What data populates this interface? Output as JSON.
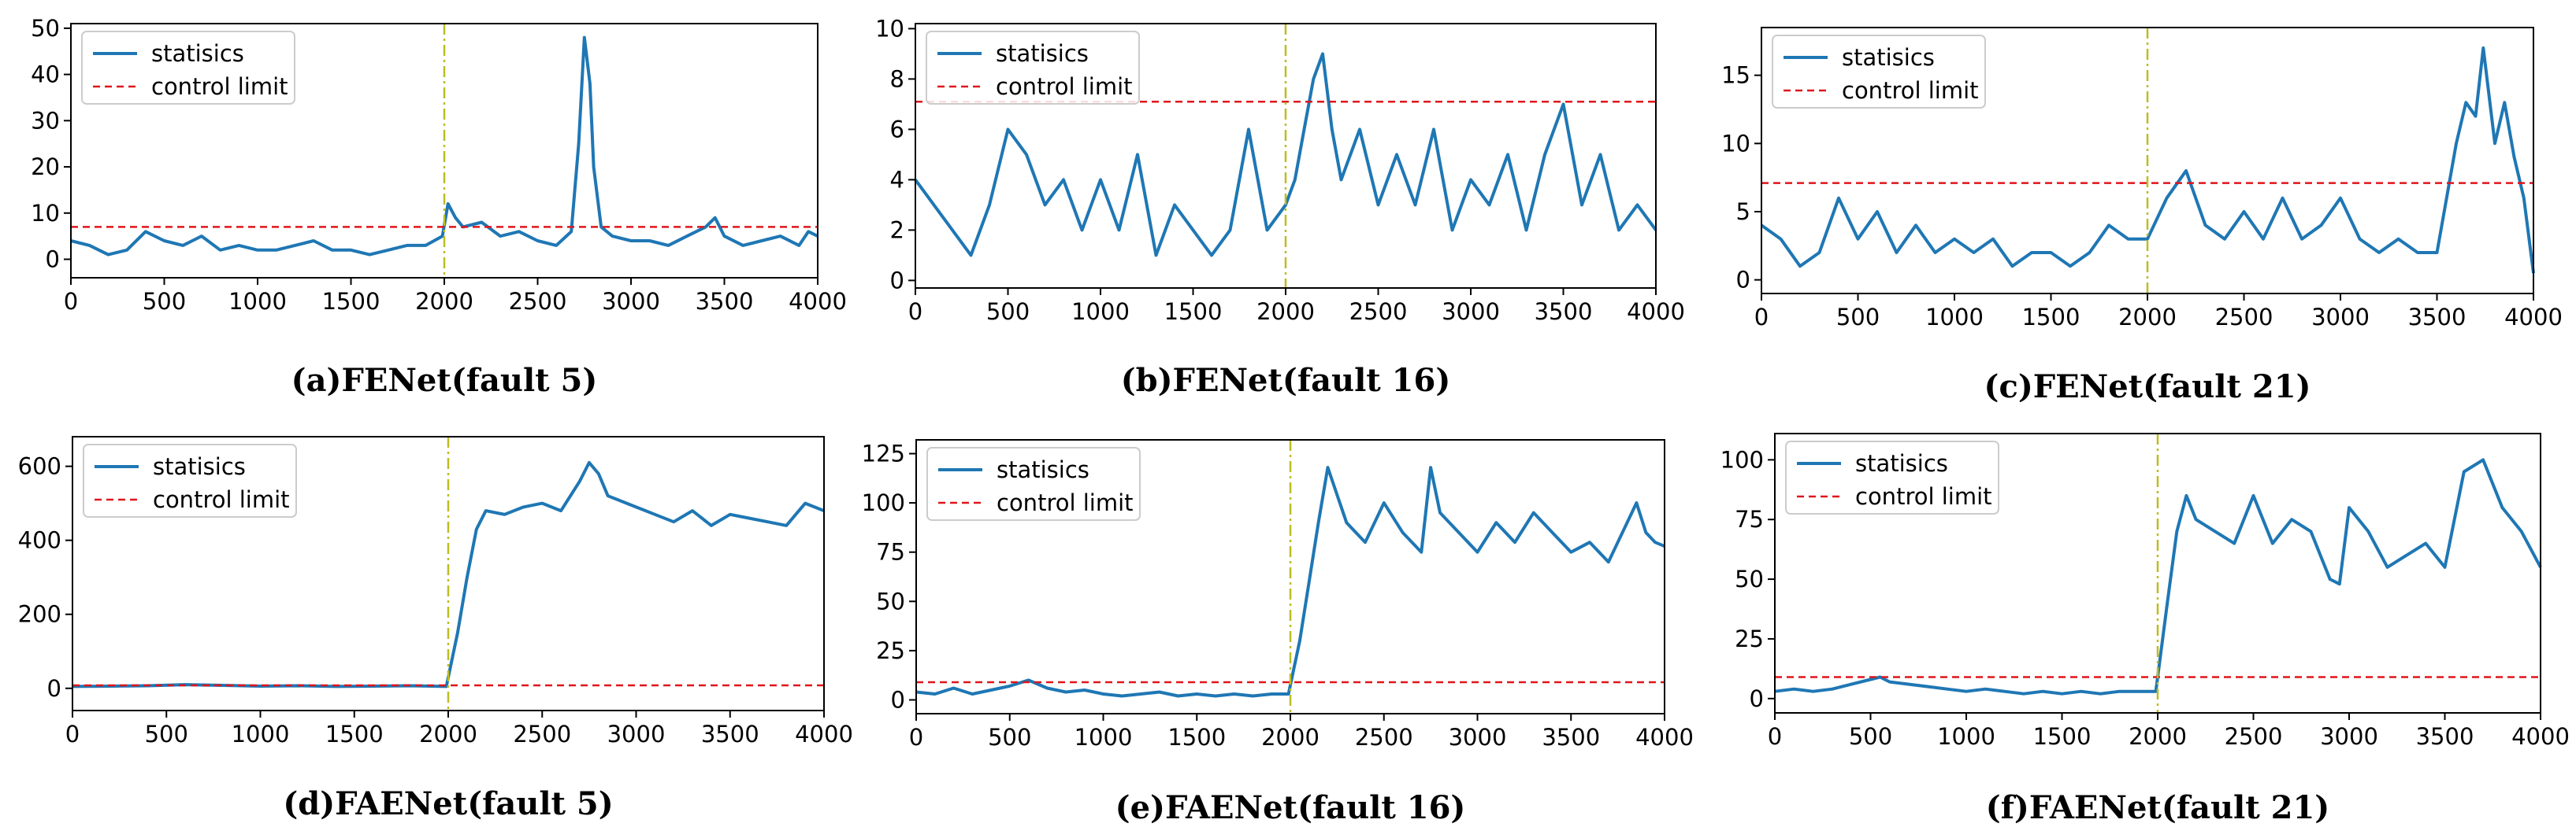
{
  "colors": {
    "statistic": "#1f77b4",
    "control_limit": "#e0151b",
    "fault_onset": "#bcbd22",
    "axes": "#000000",
    "legend_border": "#cccccc"
  },
  "chart_data": [
    {
      "type": "line",
      "caption": "(a)FENet(fault 5)",
      "x_ticks": [
        0,
        500,
        1000,
        1500,
        2000,
        2500,
        3000,
        3500,
        4000
      ],
      "y_ticks": [
        0,
        10,
        20,
        30,
        40,
        50
      ],
      "xlim": [
        0,
        4000
      ],
      "ylim": [
        -4,
        51
      ],
      "legend_position": "top-left",
      "series": [
        {
          "name": "statisics",
          "style": "solid",
          "x": [
            0,
            100,
            200,
            300,
            400,
            500,
            600,
            700,
            800,
            900,
            1000,
            1100,
            1200,
            1300,
            1400,
            1500,
            1600,
            1700,
            1800,
            1900,
            1990,
            2020,
            2060,
            2100,
            2200,
            2300,
            2400,
            2500,
            2600,
            2680,
            2720,
            2750,
            2780,
            2800,
            2840,
            2900,
            3000,
            3100,
            3200,
            3300,
            3400,
            3450,
            3500,
            3600,
            3700,
            3800,
            3900,
            3950,
            4000
          ],
          "y": [
            4,
            3,
            1,
            2,
            6,
            4,
            3,
            5,
            2,
            3,
            2,
            2,
            3,
            4,
            2,
            2,
            1,
            2,
            3,
            3,
            5,
            12,
            9,
            7,
            8,
            5,
            6,
            4,
            3,
            6,
            25,
            48,
            38,
            20,
            7,
            5,
            4,
            4,
            3,
            5,
            7,
            9,
            5,
            3,
            4,
            5,
            3,
            6,
            5
          ]
        },
        {
          "name": "control limit",
          "style": "dashed",
          "x": [
            0,
            4000
          ],
          "y": [
            7,
            7
          ]
        }
      ],
      "fault_onset_x": 2000
    },
    {
      "type": "line",
      "caption": "(b)FENet(fault 16)",
      "x_ticks": [
        0,
        500,
        1000,
        1500,
        2000,
        2500,
        3000,
        3500,
        4000
      ],
      "y_ticks": [
        0,
        2,
        4,
        6,
        8,
        10
      ],
      "xlim": [
        0,
        4000
      ],
      "ylim": [
        -0.3,
        10.2
      ],
      "legend_position": "top-left",
      "series": [
        {
          "name": "statisics",
          "style": "solid",
          "x": [
            0,
            100,
            200,
            300,
            400,
            500,
            600,
            700,
            800,
            900,
            1000,
            1100,
            1200,
            1300,
            1400,
            1500,
            1600,
            1700,
            1800,
            1900,
            2000,
            2050,
            2100,
            2150,
            2200,
            2250,
            2300,
            2400,
            2500,
            2600,
            2700,
            2800,
            2900,
            3000,
            3100,
            3200,
            3300,
            3400,
            3500,
            3600,
            3700,
            3800,
            3900,
            4000
          ],
          "y": [
            4,
            3,
            2,
            1,
            3,
            6,
            5,
            3,
            4,
            2,
            4,
            2,
            5,
            1,
            3,
            2,
            1,
            2,
            6,
            2,
            3,
            4,
            6,
            8,
            9,
            6,
            4,
            6,
            3,
            5,
            3,
            6,
            2,
            4,
            3,
            5,
            2,
            5,
            7,
            3,
            5,
            2,
            3,
            2
          ]
        },
        {
          "name": "control limit",
          "style": "dashed",
          "x": [
            0,
            4000
          ],
          "y": [
            7.1,
            7.1
          ]
        }
      ],
      "fault_onset_x": 2000
    },
    {
      "type": "line",
      "caption": "(c)FENet(fault 21)",
      "x_ticks": [
        0,
        500,
        1000,
        1500,
        2000,
        2500,
        3000,
        3500,
        4000
      ],
      "y_ticks": [
        0,
        5,
        10,
        15
      ],
      "xlim": [
        0,
        4000
      ],
      "ylim": [
        -1,
        18.5
      ],
      "legend_position": "top-left",
      "series": [
        {
          "name": "statisics",
          "style": "solid",
          "x": [
            0,
            100,
            200,
            300,
            400,
            500,
            600,
            700,
            800,
            900,
            1000,
            1100,
            1200,
            1300,
            1400,
            1500,
            1600,
            1700,
            1800,
            1900,
            2000,
            2100,
            2200,
            2300,
            2400,
            2500,
            2600,
            2700,
            2800,
            2900,
            3000,
            3100,
            3200,
            3300,
            3400,
            3500,
            3600,
            3650,
            3700,
            3740,
            3800,
            3850,
            3900,
            3950,
            4000
          ],
          "y": [
            4,
            3,
            1,
            2,
            6,
            3,
            5,
            2,
            4,
            2,
            3,
            2,
            3,
            1,
            2,
            2,
            1,
            2,
            4,
            3,
            3,
            6,
            8,
            4,
            3,
            5,
            3,
            6,
            3,
            4,
            6,
            3,
            2,
            3,
            2,
            2,
            10,
            13,
            12,
            17,
            10,
            13,
            9,
            6,
            0.5
          ]
        },
        {
          "name": "control limit",
          "style": "dashed",
          "x": [
            0,
            4000
          ],
          "y": [
            7.1,
            7.1
          ]
        }
      ],
      "fault_onset_x": 2000
    },
    {
      "type": "line",
      "caption": "(d)FAENet(fault 5)",
      "x_ticks": [
        0,
        500,
        1000,
        1500,
        2000,
        2500,
        3000,
        3500,
        4000
      ],
      "y_ticks": [
        0,
        200,
        400,
        600
      ],
      "xlim": [
        0,
        4000
      ],
      "ylim": [
        -60,
        680
      ],
      "legend_position": "top-left",
      "series": [
        {
          "name": "statisics",
          "style": "solid",
          "x": [
            0,
            200,
            400,
            600,
            800,
            1000,
            1200,
            1400,
            1600,
            1800,
            1990,
            2050,
            2100,
            2150,
            2200,
            2300,
            2400,
            2500,
            2600,
            2700,
            2750,
            2800,
            2850,
            2900,
            3000,
            3100,
            3200,
            3300,
            3400,
            3500,
            3600,
            3700,
            3800,
            3900,
            4000
          ],
          "y": [
            5,
            6,
            7,
            10,
            8,
            6,
            7,
            5,
            6,
            7,
            5,
            150,
            300,
            430,
            480,
            470,
            490,
            500,
            480,
            560,
            610,
            580,
            520,
            510,
            490,
            470,
            450,
            480,
            440,
            470,
            460,
            450,
            440,
            500,
            480
          ]
        },
        {
          "name": "control limit",
          "style": "dashed",
          "x": [
            0,
            4000
          ],
          "y": [
            8,
            8
          ]
        }
      ],
      "fault_onset_x": 2000
    },
    {
      "type": "line",
      "caption": "(e)FAENet(fault 16)",
      "x_ticks": [
        0,
        500,
        1000,
        1500,
        2000,
        2500,
        3000,
        3500,
        4000
      ],
      "y_ticks": [
        0,
        25,
        50,
        75,
        100,
        125
      ],
      "xlim": [
        0,
        4000
      ],
      "ylim": [
        -7,
        132
      ],
      "legend_position": "top-left",
      "series": [
        {
          "name": "statisics",
          "style": "solid",
          "x": [
            0,
            100,
            200,
            300,
            400,
            500,
            600,
            700,
            800,
            900,
            1000,
            1100,
            1200,
            1300,
            1400,
            1500,
            1600,
            1700,
            1800,
            1900,
            1990,
            2050,
            2100,
            2150,
            2200,
            2300,
            2400,
            2500,
            2600,
            2700,
            2750,
            2800,
            2900,
            3000,
            3100,
            3200,
            3300,
            3400,
            3500,
            3600,
            3700,
            3800,
            3850,
            3900,
            3950,
            4000
          ],
          "y": [
            4,
            3,
            6,
            3,
            5,
            7,
            10,
            6,
            4,
            5,
            3,
            2,
            3,
            4,
            2,
            3,
            2,
            3,
            2,
            3,
            3,
            30,
            60,
            90,
            118,
            90,
            80,
            100,
            85,
            75,
            118,
            95,
            85,
            75,
            90,
            80,
            95,
            85,
            75,
            80,
            70,
            90,
            100,
            85,
            80,
            78
          ]
        },
        {
          "name": "control limit",
          "style": "dashed",
          "x": [
            0,
            4000
          ],
          "y": [
            9,
            9
          ]
        }
      ],
      "fault_onset_x": 2000
    },
    {
      "type": "line",
      "caption": "(f)FAENet(fault 21)",
      "x_ticks": [
        0,
        500,
        1000,
        1500,
        2000,
        2500,
        3000,
        3500,
        4000
      ],
      "y_ticks": [
        0,
        25,
        50,
        75,
        100
      ],
      "xlim": [
        0,
        4000
      ],
      "ylim": [
        -6,
        111
      ],
      "legend_position": "top-left",
      "series": [
        {
          "name": "statisics",
          "style": "solid",
          "x": [
            0,
            100,
            200,
            300,
            400,
            500,
            550,
            600,
            700,
            800,
            900,
            1000,
            1100,
            1200,
            1300,
            1400,
            1500,
            1600,
            1700,
            1800,
            1900,
            1990,
            2050,
            2100,
            2150,
            2200,
            2300,
            2400,
            2500,
            2600,
            2700,
            2800,
            2900,
            2950,
            3000,
            3100,
            3200,
            3300,
            3400,
            3500,
            3600,
            3700,
            3800,
            3900,
            4000
          ],
          "y": [
            3,
            4,
            3,
            4,
            6,
            8,
            9,
            7,
            6,
            5,
            4,
            3,
            4,
            3,
            2,
            3,
            2,
            3,
            2,
            3,
            3,
            3,
            40,
            70,
            85,
            75,
            70,
            65,
            85,
            65,
            75,
            70,
            50,
            48,
            80,
            70,
            55,
            60,
            65,
            55,
            95,
            100,
            80,
            70,
            55
          ]
        },
        {
          "name": "control limit",
          "style": "dashed",
          "x": [
            0,
            4000
          ],
          "y": [
            9,
            9
          ]
        }
      ],
      "fault_onset_x": 2000
    }
  ]
}
